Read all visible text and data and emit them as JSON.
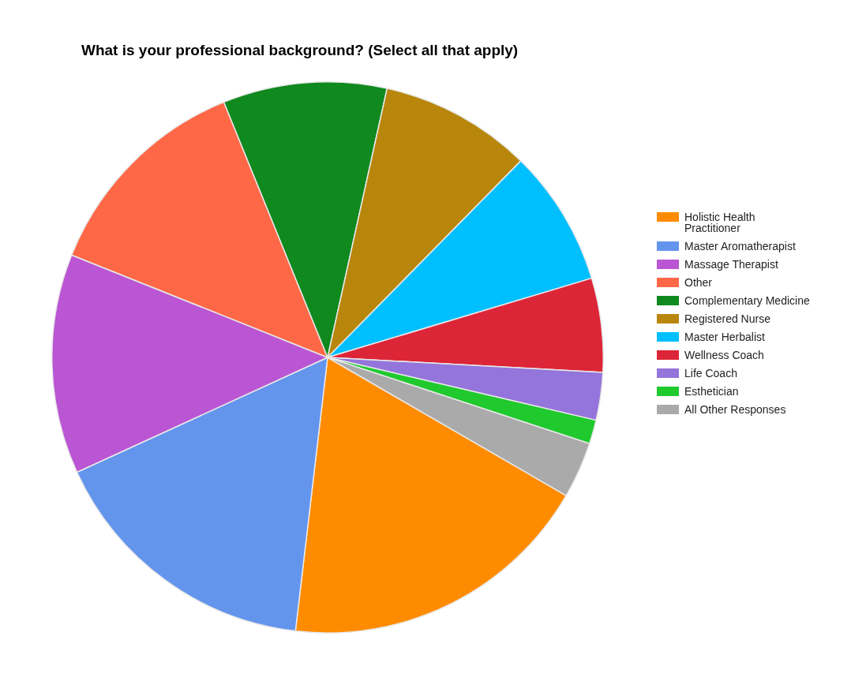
{
  "chart_data": {
    "type": "pie",
    "title": "What is your professional background? (Select all that apply)",
    "categories": [
      "Holistic Health Practitioner",
      "Master Aromatherapist",
      "Massage Therapist",
      "Other",
      "Complementary Medicine",
      "Registered Nurse",
      "Master Herbalist",
      "Wellness Coach",
      "Life Coach",
      "Esthetician",
      "All Other Responses"
    ],
    "values": [
      18.5,
      16.3,
      12.9,
      12.8,
      9.6,
      8.9,
      8.0,
      5.5,
      2.8,
      1.4,
      3.3
    ],
    "colors": [
      "#ff8c00",
      "#6495ed",
      "#ba55d3",
      "#ff6847",
      "#10891e",
      "#b8860b",
      "#00bfff",
      "#dc2638",
      "#9475db",
      "#1fc92e",
      "#aaaaaa"
    ],
    "legend": "right"
  }
}
